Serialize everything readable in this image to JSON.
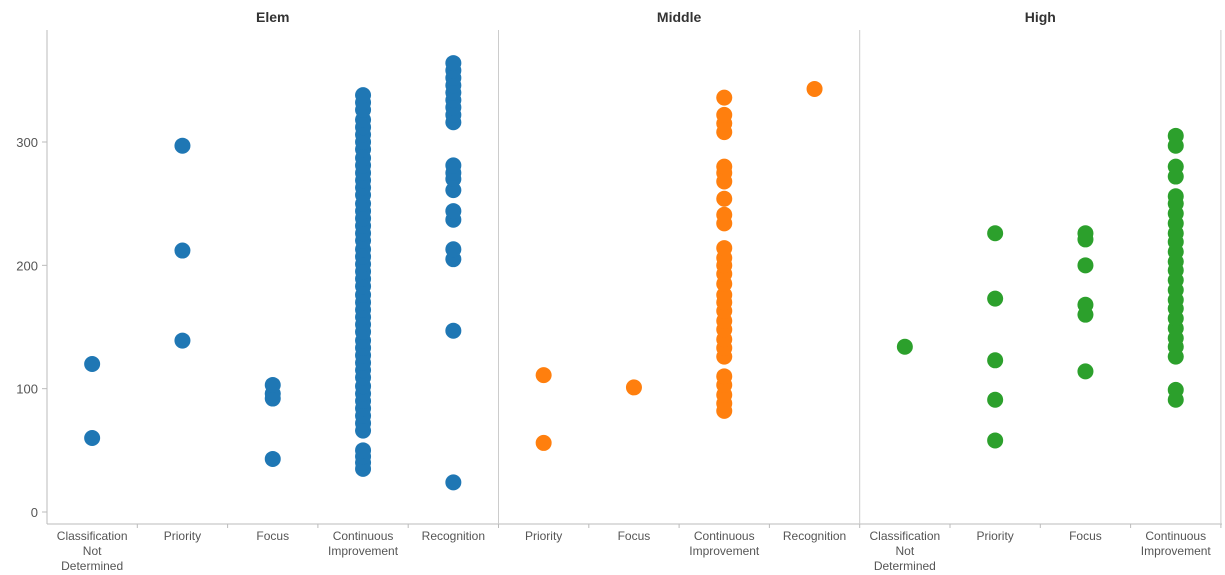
{
  "chart_data": {
    "type": "scatter",
    "title": "",
    "xlabel": "",
    "ylabel": "",
    "ylim": [
      0,
      370
    ],
    "yticks": [
      0,
      100,
      200,
      300
    ],
    "grid": false,
    "facets": [
      {
        "name": "Elem",
        "color": "#1f77b4",
        "categories": [
          {
            "label": [
              "Classification",
              "Not",
              "Determined"
            ],
            "values": [
              60,
              120
            ]
          },
          {
            "label": [
              "Priority"
            ],
            "values": [
              139,
              212,
              297
            ]
          },
          {
            "label": [
              "Focus"
            ],
            "values": [
              43,
              92,
              96,
              103
            ]
          },
          {
            "label": [
              "Continuous",
              "Improvement"
            ],
            "values": [
              35,
              40,
              45,
              50,
              66,
              72,
              78,
              84,
              90,
              96,
              102,
              109,
              115,
              121,
              127,
              133,
              139,
              146,
              152,
              158,
              164,
              170,
              176,
              183,
              189,
              195,
              201,
              207,
              213,
              220,
              226,
              232,
              238,
              244,
              250,
              257,
              263,
              269,
              275,
              281,
              287,
              294,
              300,
              306,
              312,
              318,
              326,
              332,
              338
            ]
          },
          {
            "label": [
              "Recognition"
            ],
            "values": [
              24,
              147,
              205,
              213,
              237,
              244,
              261,
              270,
              275,
              281,
              316,
              322,
              328,
              334,
              340,
              346,
              352,
              358,
              364
            ]
          }
        ]
      },
      {
        "name": "Middle",
        "color": "#ff7f0e",
        "categories": [
          {
            "label": [
              "Priority"
            ],
            "values": [
              56,
              111
            ]
          },
          {
            "label": [
              "Focus"
            ],
            "values": [
              101
            ]
          },
          {
            "label": [
              "Continuous",
              "Improvement"
            ],
            "values": [
              82,
              88,
              95,
              103,
              110,
              126,
              133,
              140,
              148,
              155,
              163,
              170,
              176,
              185,
              193,
              200,
              206,
              214,
              234,
              241,
              254,
              268,
              275,
              280,
              308,
              315,
              322,
              336
            ]
          },
          {
            "label": [
              "Recognition"
            ],
            "values": [
              343
            ]
          }
        ]
      },
      {
        "name": "High",
        "color": "#2ca02c",
        "categories": [
          {
            "label": [
              "Classification",
              "Not",
              "Determined"
            ],
            "values": [
              134
            ]
          },
          {
            "label": [
              "Priority"
            ],
            "values": [
              58,
              91,
              123,
              173,
              226
            ]
          },
          {
            "label": [
              "Focus"
            ],
            "values": [
              114,
              160,
              168,
              200,
              221,
              226
            ]
          },
          {
            "label": [
              "Continuous",
              "Improvement"
            ],
            "values": [
              91,
              99,
              126,
              134,
              141,
              149,
              157,
              165,
              172,
              180,
              188,
              196,
              203,
              211,
              219,
              226,
              234,
              242,
              250,
              256,
              272,
              280,
              297,
              305
            ]
          }
        ]
      }
    ]
  }
}
